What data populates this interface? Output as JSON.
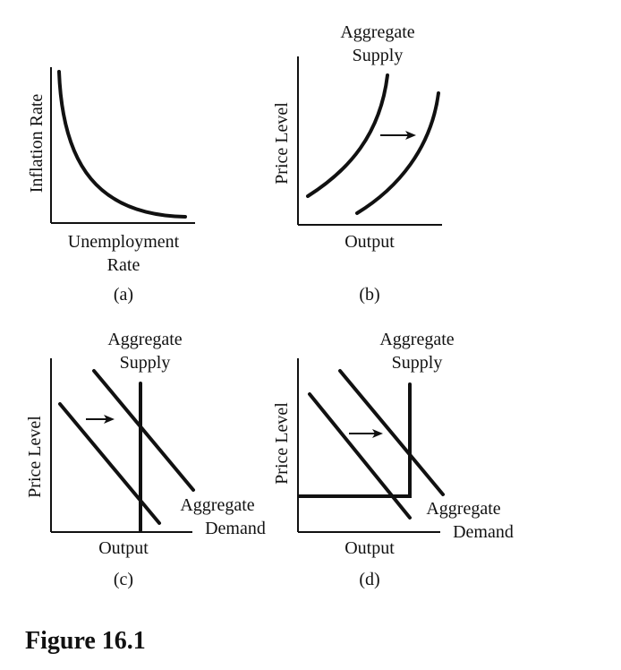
{
  "panels": {
    "a": {
      "y_label": "Inflation Rate",
      "x_label_line1": "Unemployment",
      "x_label_line2": "Rate",
      "caption": "(a)"
    },
    "b": {
      "y_label": "Price Level",
      "x_label": "Output",
      "curve_label_line1": "Aggregate",
      "curve_label_line2": "Supply",
      "caption": "(b)"
    },
    "c": {
      "y_label": "Price Level",
      "x_label": "Output",
      "supply_label_line1": "Aggregate",
      "supply_label_line2": "Supply",
      "demand_label_line1": "Aggregate",
      "demand_label_line2": "Demand",
      "caption": "(c)"
    },
    "d": {
      "y_label": "Price Level",
      "x_label": "Output",
      "supply_label_line1": "Aggregate",
      "supply_label_line2": "Supply",
      "demand_label_line1": "Aggregate",
      "demand_label_line2": "Demand",
      "caption": "(d)"
    }
  },
  "figure_title": "Figure 16.1"
}
